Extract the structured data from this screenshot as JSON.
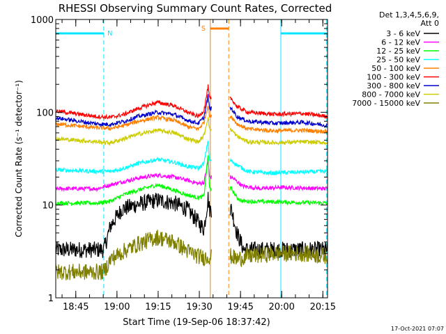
{
  "chart_data": {
    "type": "line",
    "title": "RHESSI Observing Summary Count Rates, Corrected",
    "xlabel": "Start Time (19-Sep-06 18:37:42)",
    "ylabel": "Corrected Count Rate (s⁻¹ detector⁻¹)",
    "y_scale": "log",
    "ylim": [
      1,
      1000
    ],
    "xlim_minutes": [
      0,
      99
    ],
    "x_ticks": [
      {
        "label": "18:45",
        "minutes": 7.3
      },
      {
        "label": "19:00",
        "minutes": 22.3
      },
      {
        "label": "19:15",
        "minutes": 37.3
      },
      {
        "label": "19:30",
        "minutes": 52.3
      },
      {
        "label": "19:45",
        "minutes": 67.3
      },
      {
        "label": "20:00",
        "minutes": 82.3
      },
      {
        "label": "20:15",
        "minutes": 97.3
      }
    ],
    "y_ticks": [
      {
        "label": "1",
        "value": 1
      },
      {
        "label": "10",
        "value": 10
      },
      {
        "label": "100",
        "value": 100
      },
      {
        "label": "1000",
        "value": 1000
      }
    ],
    "legend_header": [
      "Det 1,3,4,5,6,9,",
      "Att 0"
    ],
    "legend_placement": "right",
    "flag_labels": {
      "night": "N",
      "saa": "S"
    },
    "flags": {
      "night": [
        [
          0,
          17.5
        ],
        [
          82,
          99
        ]
      ],
      "night_dashed": [
        17.5,
        98.7
      ],
      "night_solid": [
        0,
        82
      ],
      "saa": [
        56.3,
        63
      ],
      "saa_solid": 56.3,
      "saa_dashed": 63
    },
    "series": [
      {
        "name": "3 - 6 keV",
        "color": "#000000",
        "points": [
          [
            0,
            3.3
          ],
          [
            17.5,
            3.3
          ],
          [
            20,
            6
          ],
          [
            24,
            9
          ],
          [
            30,
            10.2
          ],
          [
            37,
            11.3
          ],
          [
            43,
            10.5
          ],
          [
            48,
            9
          ],
          [
            52,
            6.5
          ],
          [
            54,
            5.5
          ],
          [
            55.5,
            12
          ],
          [
            56,
            9
          ],
          [
            64,
            9
          ],
          [
            66,
            5
          ],
          [
            68.5,
            3.3
          ],
          [
            99,
            3.3
          ]
        ]
      },
      {
        "name": "6 - 12 keV",
        "color": "#ff00ff",
        "points": [
          [
            0,
            15
          ],
          [
            15,
            15
          ],
          [
            20,
            16.5
          ],
          [
            25,
            18
          ],
          [
            30,
            19.5
          ],
          [
            37,
            21
          ],
          [
            43,
            20
          ],
          [
            48,
            18.5
          ],
          [
            52,
            17
          ],
          [
            54,
            17.5
          ],
          [
            55.5,
            30
          ],
          [
            56,
            20
          ],
          [
            64,
            20
          ],
          [
            66,
            18
          ],
          [
            68,
            16
          ],
          [
            75,
            15
          ],
          [
            82,
            15.5
          ],
          [
            99,
            15
          ]
        ]
      },
      {
        "name": "12 - 25 keV",
        "color": "#00ff00",
        "points": [
          [
            0,
            10.5
          ],
          [
            15,
            10.5
          ],
          [
            20,
            11
          ],
          [
            25,
            13
          ],
          [
            30,
            14.5
          ],
          [
            37,
            16.5
          ],
          [
            43,
            14.5
          ],
          [
            48,
            12.8
          ],
          [
            52,
            12
          ],
          [
            54,
            12.5
          ],
          [
            55.5,
            35
          ],
          [
            56,
            15
          ],
          [
            64,
            15
          ],
          [
            66,
            12
          ],
          [
            68,
            11
          ],
          [
            99,
            10.5
          ]
        ]
      },
      {
        "name": "25 - 50 keV",
        "color": "#00ffff",
        "points": [
          [
            0,
            24
          ],
          [
            15,
            23
          ],
          [
            20,
            23
          ],
          [
            25,
            25
          ],
          [
            30,
            28
          ],
          [
            37,
            31
          ],
          [
            43,
            29
          ],
          [
            48,
            26
          ],
          [
            52,
            25
          ],
          [
            54,
            28
          ],
          [
            55.5,
            50
          ],
          [
            56,
            30
          ],
          [
            64,
            30
          ],
          [
            66,
            27
          ],
          [
            70,
            23
          ],
          [
            78,
            22
          ],
          [
            85,
            22.5
          ],
          [
            99,
            23
          ]
        ]
      },
      {
        "name": "50 - 100 keV",
        "color": "#ff8000",
        "points": [
          [
            0,
            75
          ],
          [
            15,
            68
          ],
          [
            20,
            67
          ],
          [
            25,
            72
          ],
          [
            30,
            80
          ],
          [
            37,
            88
          ],
          [
            43,
            82
          ],
          [
            48,
            70
          ],
          [
            52,
            66
          ],
          [
            54,
            78
          ],
          [
            55.5,
            120
          ],
          [
            56,
            90
          ],
          [
            64,
            90
          ],
          [
            66,
            75
          ],
          [
            70,
            66
          ],
          [
            80,
            63
          ],
          [
            90,
            64
          ],
          [
            99,
            62
          ]
        ]
      },
      {
        "name": "100 - 300 keV",
        "color": "#ff0000",
        "points": [
          [
            0,
            103
          ],
          [
            15,
            90
          ],
          [
            20,
            88
          ],
          [
            25,
            95
          ],
          [
            30,
            110
          ],
          [
            37,
            128
          ],
          [
            43,
            118
          ],
          [
            48,
            100
          ],
          [
            52,
            90
          ],
          [
            54,
            105
          ],
          [
            55.5,
            190
          ],
          [
            56,
            140
          ],
          [
            64,
            140
          ],
          [
            66,
            115
          ],
          [
            70,
            100
          ],
          [
            80,
            95
          ],
          [
            90,
            97
          ],
          [
            99,
            90
          ]
        ]
      },
      {
        "name": "300 - 800 keV",
        "color": "#0000cc",
        "points": [
          [
            0,
            87
          ],
          [
            15,
            75
          ],
          [
            20,
            74
          ],
          [
            25,
            80
          ],
          [
            30,
            90
          ],
          [
            37,
            100
          ],
          [
            43,
            95
          ],
          [
            48,
            82
          ],
          [
            52,
            76
          ],
          [
            54,
            88
          ],
          [
            55.5,
            150
          ],
          [
            56,
            110
          ],
          [
            64,
            110
          ],
          [
            66,
            90
          ],
          [
            70,
            80
          ],
          [
            80,
            76
          ],
          [
            90,
            78
          ],
          [
            99,
            72
          ]
        ]
      },
      {
        "name": "800 - 7000 keV",
        "color": "#cccc00",
        "points": [
          [
            0,
            52
          ],
          [
            15,
            48
          ],
          [
            20,
            47
          ],
          [
            25,
            52
          ],
          [
            30,
            58
          ],
          [
            37,
            64
          ],
          [
            43,
            60
          ],
          [
            48,
            52
          ],
          [
            52,
            48
          ],
          [
            54,
            56
          ],
          [
            55.5,
            90
          ],
          [
            56,
            65
          ],
          [
            64,
            65
          ],
          [
            66,
            55
          ],
          [
            70,
            48
          ],
          [
            80,
            47
          ],
          [
            90,
            48
          ],
          [
            99,
            47
          ]
        ]
      },
      {
        "name": "7000 - 15000 keV",
        "color": "#808000",
        "points": [
          [
            0,
            1.9
          ],
          [
            17.5,
            1.9
          ],
          [
            20,
            2.6
          ],
          [
            25,
            3.2
          ],
          [
            30,
            3.8
          ],
          [
            37,
            4.5
          ],
          [
            43,
            4
          ],
          [
            48,
            3.2
          ],
          [
            52,
            2.8
          ],
          [
            54,
            2.7
          ],
          [
            56,
            2.8
          ],
          [
            64,
            2.8
          ],
          [
            66,
            2.6
          ],
          [
            70,
            2.8
          ],
          [
            80,
            3
          ],
          [
            90,
            3
          ],
          [
            99,
            2.8
          ]
        ]
      }
    ]
  },
  "timestamp": "17-Oct-2021 07:07"
}
